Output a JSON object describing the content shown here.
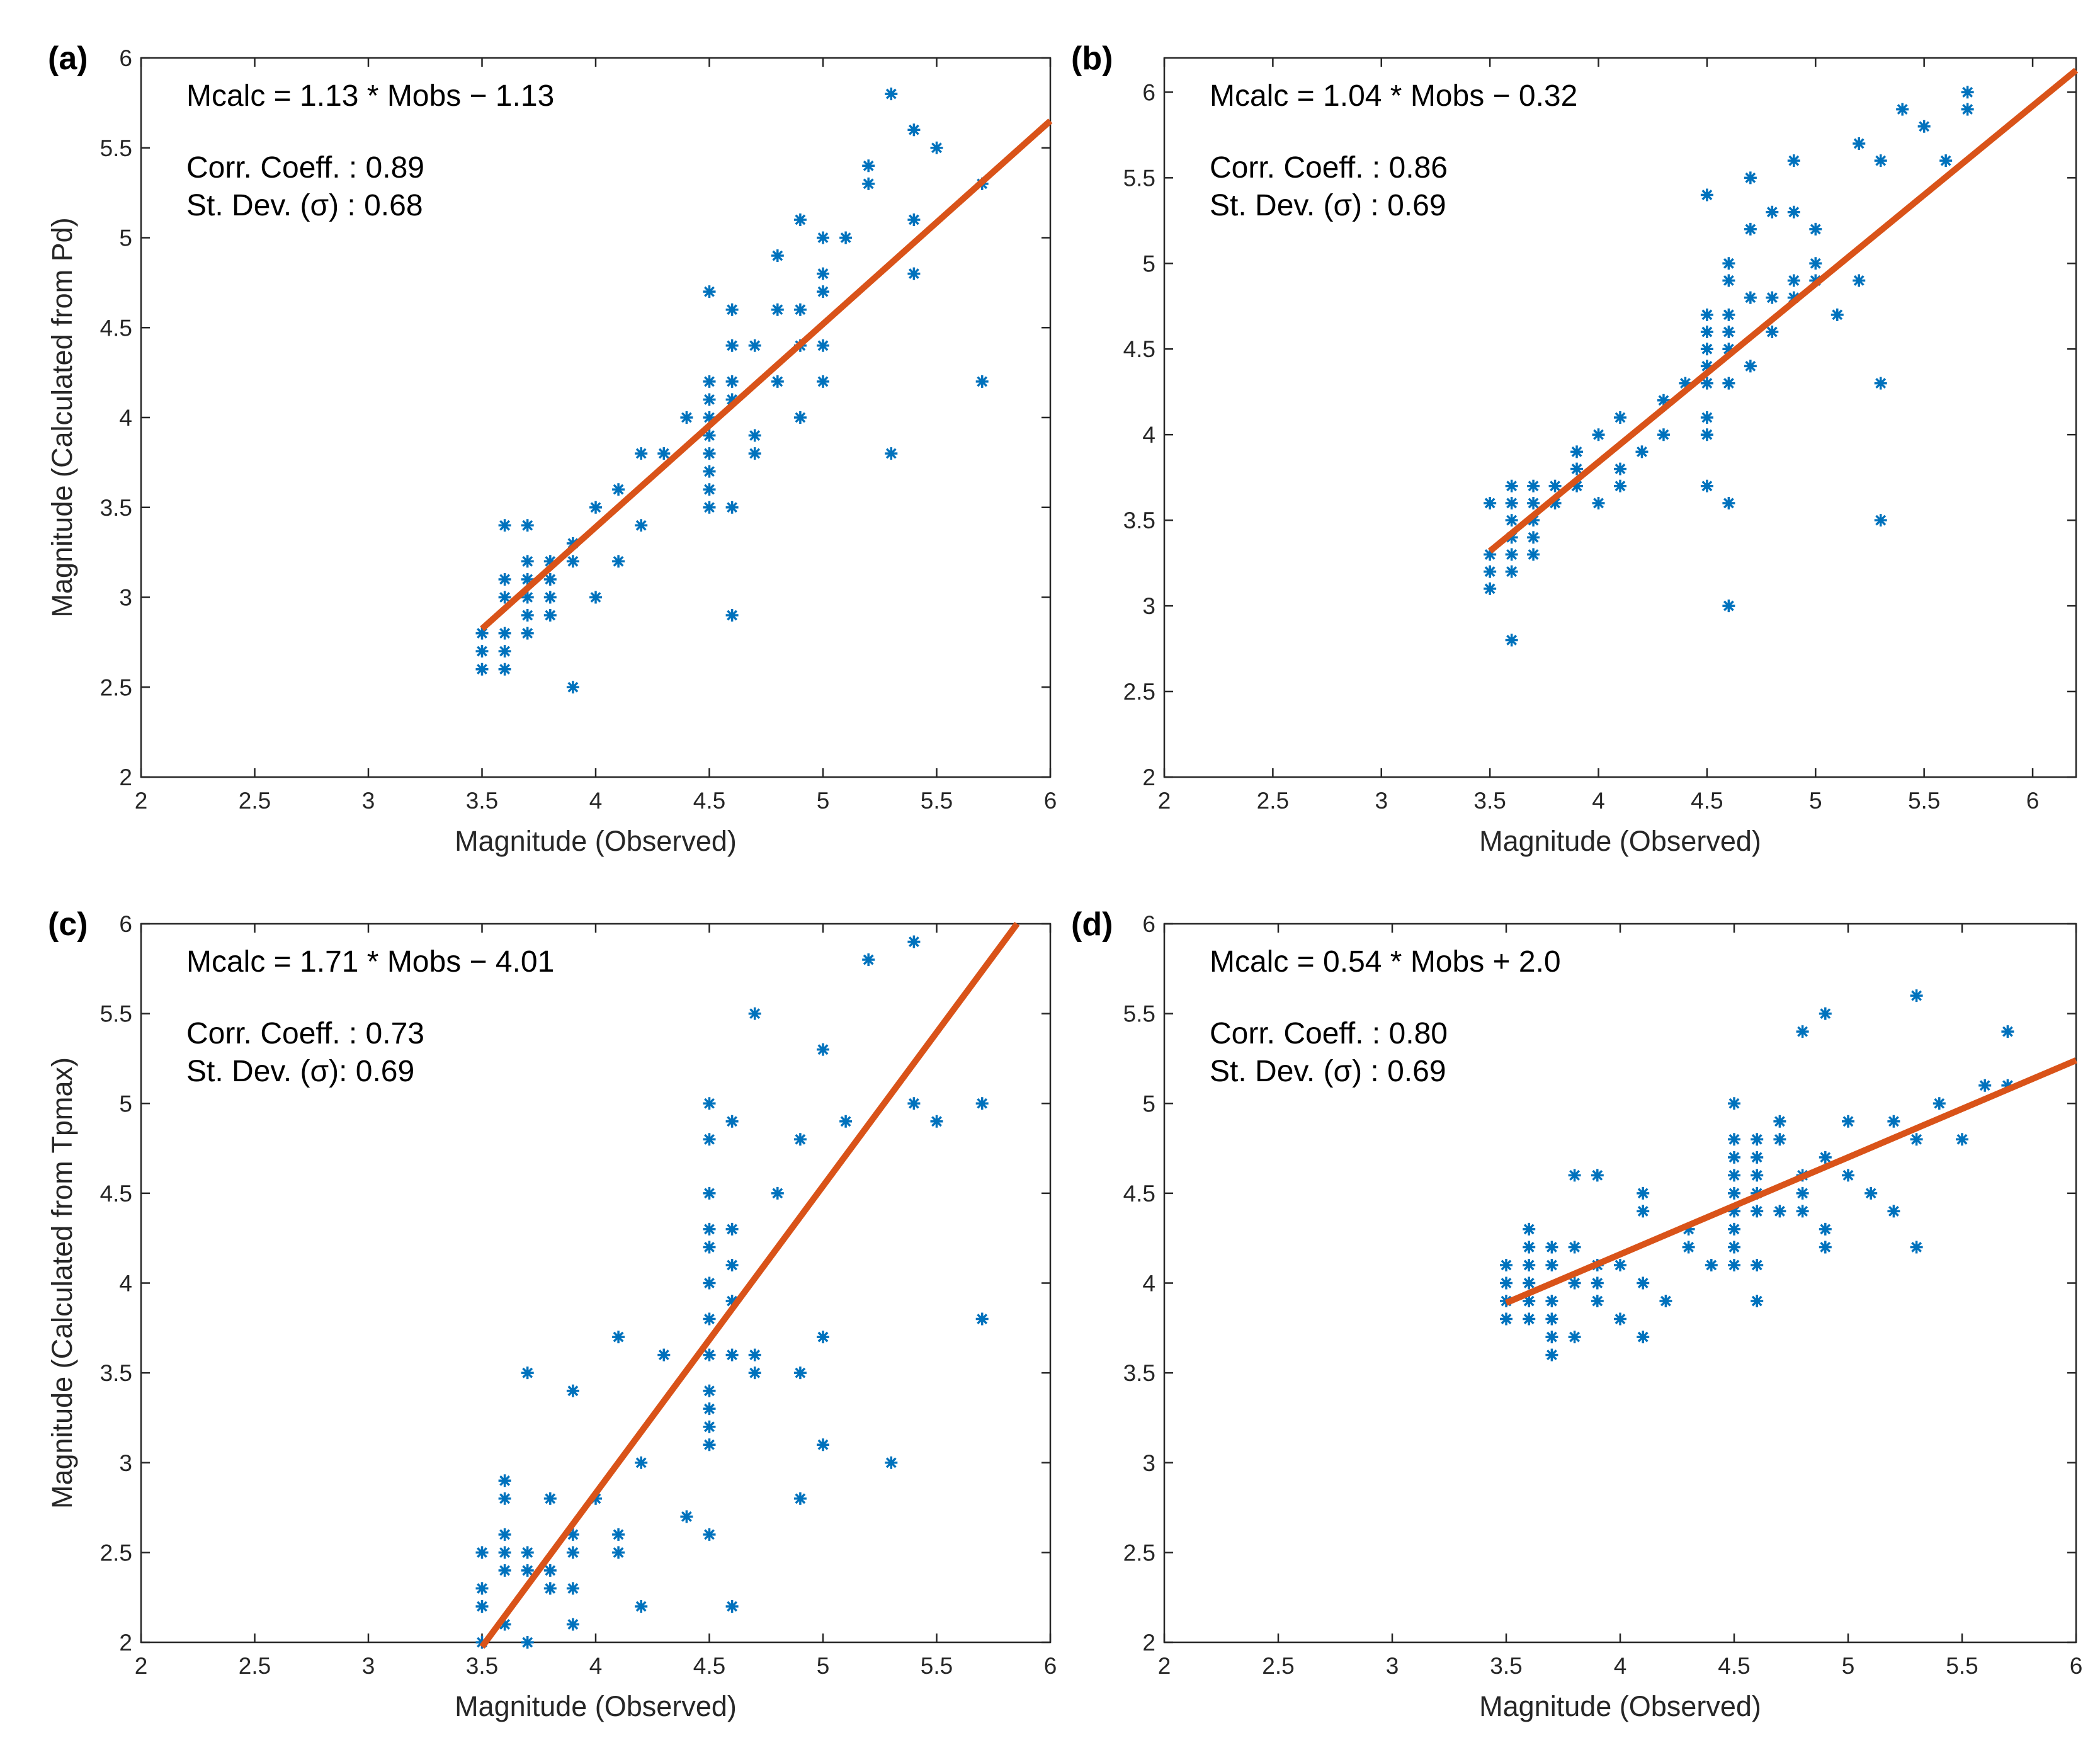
{
  "colors": {
    "marker": "#0072BD",
    "fit_line": "#D95319",
    "axis": "#262626"
  },
  "chart_data": [
    {
      "type": "scatter",
      "panel_label": "(a)",
      "equation": "Mcalc = 1.13 * Mobs − 1.13",
      "corr": "Corr. Coeff.  : 0.89",
      "stdev": "St. Dev. (σ) : 0.68",
      "xlabel": "Magnitude (Observed)",
      "ylabel": "Magnitude (Calculated from Pd)",
      "xlim": [
        2,
        6
      ],
      "ylim": [
        2,
        6
      ],
      "xticks": [
        "2",
        "2.5",
        "3",
        "3.5",
        "4",
        "4.5",
        "5",
        "5.5",
        "6"
      ],
      "yticks": [
        "2",
        "2.5",
        "3",
        "3.5",
        "4",
        "4.5",
        "5",
        "5.5",
        "6"
      ],
      "fit": {
        "slope": 1.13,
        "intercept": -1.13,
        "x_range": [
          3.5,
          6
        ]
      },
      "points_by_x": [
        {
          "x": 3.5,
          "y": [
            2.6,
            2.7,
            2.8
          ]
        },
        {
          "x": 3.6,
          "y": [
            2.6,
            2.7,
            2.8,
            3.0,
            3.1,
            3.4
          ]
        },
        {
          "x": 3.7,
          "y": [
            2.8,
            2.9,
            3.0,
            3.1,
            3.2,
            3.4
          ]
        },
        {
          "x": 3.8,
          "y": [
            2.9,
            3.0,
            3.1,
            3.2
          ]
        },
        {
          "x": 3.9,
          "y": [
            2.5,
            3.2,
            3.3
          ]
        },
        {
          "x": 4.0,
          "y": [
            3.0,
            3.5
          ]
        },
        {
          "x": 4.1,
          "y": [
            3.2,
            3.6
          ]
        },
        {
          "x": 4.2,
          "y": [
            3.4,
            3.8
          ]
        },
        {
          "x": 4.3,
          "y": [
            3.8
          ]
        },
        {
          "x": 4.4,
          "y": [
            4.0
          ]
        },
        {
          "x": 4.5,
          "y": [
            3.5,
            3.6,
            3.7,
            3.8,
            3.9,
            4.0,
            4.1,
            4.2,
            4.7
          ]
        },
        {
          "x": 4.6,
          "y": [
            2.9,
            3.5,
            4.1,
            4.2,
            4.4,
            4.6
          ]
        },
        {
          "x": 4.7,
          "y": [
            3.8,
            3.9,
            4.4
          ]
        },
        {
          "x": 4.8,
          "y": [
            4.2,
            4.6,
            4.9
          ]
        },
        {
          "x": 4.9,
          "y": [
            4.0,
            4.4,
            4.6,
            5.1
          ]
        },
        {
          "x": 5.0,
          "y": [
            4.2,
            4.4,
            4.7,
            4.8,
            5.0
          ]
        },
        {
          "x": 5.1,
          "y": [
            5.0
          ]
        },
        {
          "x": 5.2,
          "y": [
            5.3,
            5.4
          ]
        },
        {
          "x": 5.3,
          "y": [
            3.8,
            5.8
          ]
        },
        {
          "x": 5.4,
          "y": [
            4.8,
            5.1,
            5.6
          ]
        },
        {
          "x": 5.5,
          "y": [
            5.5
          ]
        },
        {
          "x": 5.7,
          "y": [
            4.2,
            5.3
          ]
        }
      ]
    },
    {
      "type": "scatter",
      "panel_label": "(b)",
      "equation": "Mcalc = 1.04 * Mobs − 0.32",
      "corr": "Corr. Coeff.  : 0.86",
      "stdev": "St. Dev. (σ) : 0.69",
      "xlabel": "Magnitude (Observed)",
      "ylabel": "",
      "xlim": [
        2,
        6.2
      ],
      "ylim": [
        2,
        6.2
      ],
      "xticks": [
        "2",
        "2.5",
        "3",
        "3.5",
        "4",
        "4.5",
        "5",
        "5.5",
        "6"
      ],
      "yticks": [
        "2",
        "2.5",
        "3",
        "3.5",
        "4",
        "4.5",
        "5",
        "5.5",
        "6"
      ],
      "fit": {
        "slope": 1.04,
        "intercept": -0.32,
        "x_range": [
          3.5,
          6.2
        ]
      },
      "points_by_x": [
        {
          "x": 3.5,
          "y": [
            3.1,
            3.2,
            3.3,
            3.6
          ]
        },
        {
          "x": 3.6,
          "y": [
            2.8,
            3.2,
            3.3,
            3.4,
            3.5,
            3.6,
            3.7
          ]
        },
        {
          "x": 3.7,
          "y": [
            3.3,
            3.4,
            3.5,
            3.6,
            3.7
          ]
        },
        {
          "x": 3.8,
          "y": [
            3.6,
            3.7
          ]
        },
        {
          "x": 3.9,
          "y": [
            3.7,
            3.8,
            3.9
          ]
        },
        {
          "x": 4.0,
          "y": [
            3.6,
            4.0
          ]
        },
        {
          "x": 4.1,
          "y": [
            3.7,
            3.8,
            4.1
          ]
        },
        {
          "x": 4.2,
          "y": [
            3.9
          ]
        },
        {
          "x": 4.3,
          "y": [
            4.0,
            4.2
          ]
        },
        {
          "x": 4.4,
          "y": [
            4.3
          ]
        },
        {
          "x": 4.5,
          "y": [
            3.7,
            4.0,
            4.1,
            4.3,
            4.4,
            4.5,
            4.6,
            4.7,
            5.4
          ]
        },
        {
          "x": 4.6,
          "y": [
            3.0,
            3.6,
            4.3,
            4.5,
            4.6,
            4.7,
            4.9,
            5.0
          ]
        },
        {
          "x": 4.7,
          "y": [
            4.4,
            4.8,
            5.2,
            5.5
          ]
        },
        {
          "x": 4.8,
          "y": [
            4.6,
            4.8,
            5.3
          ]
        },
        {
          "x": 4.9,
          "y": [
            4.8,
            4.9,
            5.3,
            5.6
          ]
        },
        {
          "x": 5.0,
          "y": [
            4.9,
            5.0,
            5.2
          ]
        },
        {
          "x": 5.1,
          "y": [
            4.7
          ]
        },
        {
          "x": 5.2,
          "y": [
            4.9,
            5.7
          ]
        },
        {
          "x": 5.3,
          "y": [
            3.5,
            4.3,
            5.6
          ]
        },
        {
          "x": 5.4,
          "y": [
            5.9
          ]
        },
        {
          "x": 5.5,
          "y": [
            5.8
          ]
        },
        {
          "x": 5.6,
          "y": [
            5.6
          ]
        },
        {
          "x": 5.7,
          "y": [
            5.9,
            6.0
          ]
        }
      ]
    },
    {
      "type": "scatter",
      "panel_label": "(c)",
      "equation": "Mcalc = 1.71 * Mobs − 4.01",
      "corr": "Corr. Coeff.  : 0.73",
      "stdev": "St. Dev. (σ): 0.69",
      "xlabel": "Magnitude (Observed)",
      "ylabel": "Magnitude (Calculated from Tpmax)",
      "xlim": [
        2,
        6
      ],
      "ylim": [
        2,
        6
      ],
      "xticks": [
        "2",
        "2.5",
        "3",
        "3.5",
        "4",
        "4.5",
        "5",
        "5.5",
        "6"
      ],
      "yticks": [
        "2",
        "2.5",
        "3",
        "3.5",
        "4",
        "4.5",
        "5",
        "5.5",
        "6"
      ],
      "fit": {
        "slope": 1.71,
        "intercept": -4.01,
        "x_range": [
          3.5,
          5.854
        ]
      },
      "points_by_x": [
        {
          "x": 3.5,
          "y": [
            2.0,
            2.2,
            2.3,
            2.5
          ]
        },
        {
          "x": 3.6,
          "y": [
            2.1,
            2.4,
            2.5,
            2.6,
            2.8,
            2.9
          ]
        },
        {
          "x": 3.7,
          "y": [
            2.0,
            2.4,
            2.5,
            3.5
          ]
        },
        {
          "x": 3.8,
          "y": [
            2.3,
            2.4,
            2.8
          ]
        },
        {
          "x": 3.9,
          "y": [
            2.1,
            2.3,
            2.5,
            2.6,
            3.4
          ]
        },
        {
          "x": 4.0,
          "y": [
            2.8
          ]
        },
        {
          "x": 4.1,
          "y": [
            2.5,
            2.6,
            3.7
          ]
        },
        {
          "x": 4.2,
          "y": [
            2.2,
            3.0
          ]
        },
        {
          "x": 4.3,
          "y": [
            3.6
          ]
        },
        {
          "x": 4.4,
          "y": [
            2.7
          ]
        },
        {
          "x": 4.5,
          "y": [
            2.6,
            3.1,
            3.2,
            3.3,
            3.4,
            3.6,
            3.8,
            4.0,
            4.2,
            4.3,
            4.5,
            4.8,
            5.0
          ]
        },
        {
          "x": 4.6,
          "y": [
            2.2,
            3.6,
            3.9,
            4.1,
            4.3,
            4.9
          ]
        },
        {
          "x": 4.7,
          "y": [
            3.5,
            3.6,
            5.5
          ]
        },
        {
          "x": 4.8,
          "y": [
            4.5
          ]
        },
        {
          "x": 4.9,
          "y": [
            2.8,
            3.5,
            4.8
          ]
        },
        {
          "x": 5.0,
          "y": [
            3.1,
            3.7,
            5.3
          ]
        },
        {
          "x": 5.1,
          "y": [
            4.9
          ]
        },
        {
          "x": 5.2,
          "y": [
            5.8
          ]
        },
        {
          "x": 5.3,
          "y": [
            3.0
          ]
        },
        {
          "x": 5.4,
          "y": [
            5.0,
            5.9
          ]
        },
        {
          "x": 5.5,
          "y": [
            4.9
          ]
        },
        {
          "x": 5.7,
          "y": [
            3.8,
            5.0
          ]
        }
      ]
    },
    {
      "type": "scatter",
      "panel_label": "(d)",
      "equation": "Mcalc = 0.54 * Mobs + 2.0",
      "corr": "Corr. Coeff.  : 0.80",
      "stdev": "St. Dev. (σ) : 0.69",
      "xlabel": "Magnitude (Observed)",
      "ylabel": "",
      "xlim": [
        2,
        6
      ],
      "ylim": [
        2,
        6
      ],
      "xticks": [
        "2",
        "2.5",
        "3",
        "3.5",
        "4",
        "4.5",
        "5",
        "5.5",
        "6"
      ],
      "yticks": [
        "2",
        "2.5",
        "3",
        "3.5",
        "4",
        "4.5",
        "5",
        "5.5",
        "6"
      ],
      "fit": {
        "slope": 0.54,
        "intercept": 2.0,
        "x_range": [
          3.5,
          6
        ]
      },
      "points_by_x": [
        {
          "x": 3.5,
          "y": [
            3.8,
            3.9,
            4.0,
            4.1
          ]
        },
        {
          "x": 3.6,
          "y": [
            3.8,
            3.9,
            4.0,
            4.1,
            4.2,
            4.3
          ]
        },
        {
          "x": 3.7,
          "y": [
            3.6,
            3.7,
            3.8,
            3.9,
            4.1,
            4.2
          ]
        },
        {
          "x": 3.8,
          "y": [
            3.7,
            4.0,
            4.2,
            4.6
          ]
        },
        {
          "x": 3.9,
          "y": [
            3.9,
            4.0,
            4.1,
            4.6
          ]
        },
        {
          "x": 4.0,
          "y": [
            3.8,
            4.1
          ]
        },
        {
          "x": 4.1,
          "y": [
            3.7,
            4.0,
            4.4,
            4.5
          ]
        },
        {
          "x": 4.2,
          "y": [
            3.9
          ]
        },
        {
          "x": 4.3,
          "y": [
            4.2,
            4.3
          ]
        },
        {
          "x": 4.4,
          "y": [
            4.1
          ]
        },
        {
          "x": 4.5,
          "y": [
            4.1,
            4.2,
            4.3,
            4.4,
            4.5,
            4.6,
            4.7,
            4.8,
            5.0
          ]
        },
        {
          "x": 4.6,
          "y": [
            3.9,
            4.1,
            4.4,
            4.5,
            4.6,
            4.7,
            4.8
          ]
        },
        {
          "x": 4.7,
          "y": [
            4.4,
            4.8,
            4.9
          ]
        },
        {
          "x": 4.8,
          "y": [
            4.4,
            4.5,
            4.6,
            5.4
          ]
        },
        {
          "x": 4.9,
          "y": [
            4.2,
            4.3,
            4.7,
            5.5
          ]
        },
        {
          "x": 5.0,
          "y": [
            4.6,
            4.9
          ]
        },
        {
          "x": 5.1,
          "y": [
            4.5
          ]
        },
        {
          "x": 5.2,
          "y": [
            4.4,
            4.9
          ]
        },
        {
          "x": 5.3,
          "y": [
            4.2,
            4.8,
            5.6
          ]
        },
        {
          "x": 5.4,
          "y": [
            5.0
          ]
        },
        {
          "x": 5.5,
          "y": [
            4.8
          ]
        },
        {
          "x": 5.6,
          "y": [
            5.1
          ]
        },
        {
          "x": 5.7,
          "y": [
            5.1,
            5.4
          ]
        }
      ]
    }
  ]
}
